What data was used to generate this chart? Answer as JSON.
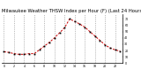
{
  "title": "Milwaukee Weather THSW Index per Hour (F) (Last 24 Hours)",
  "x": [
    0,
    1,
    2,
    3,
    4,
    5,
    6,
    7,
    8,
    9,
    10,
    11,
    12,
    13,
    14,
    15,
    16,
    17,
    18,
    19,
    20,
    21,
    22,
    23
  ],
  "y": [
    18,
    17,
    15,
    14,
    14,
    15,
    15,
    21,
    27,
    33,
    40,
    48,
    56,
    70,
    66,
    62,
    57,
    50,
    43,
    36,
    29,
    24,
    21,
    19
  ],
  "line_color": "#cc0000",
  "marker_color": "#000000",
  "bg_color": "#ffffff",
  "grid_color": "#888888",
  "title_color": "#000000",
  "title_fontsize": 3.8,
  "yticks": [
    0,
    10,
    20,
    30,
    40,
    50,
    60,
    70
  ],
  "ylim": [
    0,
    78
  ],
  "xlim": [
    -0.5,
    23.5
  ],
  "vgrid_positions": [
    0,
    2,
    4,
    6,
    8,
    10,
    12,
    14,
    16,
    18,
    20,
    22
  ]
}
